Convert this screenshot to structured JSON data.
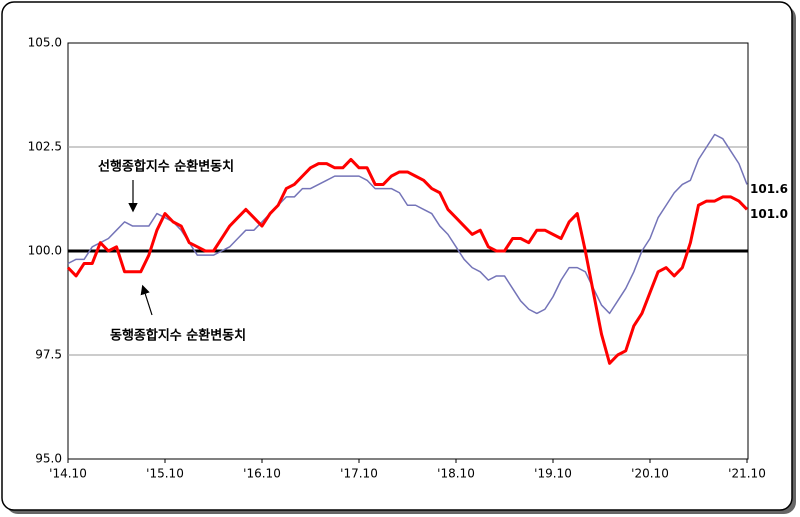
{
  "chart_data": {
    "type": "line",
    "categories": [
      "'14.10",
      null,
      null,
      null,
      null,
      null,
      null,
      null,
      null,
      null,
      null,
      null,
      "'15.10",
      null,
      null,
      null,
      null,
      null,
      null,
      null,
      null,
      null,
      null,
      null,
      "'16.10",
      null,
      null,
      null,
      null,
      null,
      null,
      null,
      null,
      null,
      null,
      null,
      "'17.10",
      null,
      null,
      null,
      null,
      null,
      null,
      null,
      null,
      null,
      null,
      null,
      "'18.10",
      null,
      null,
      null,
      null,
      null,
      null,
      null,
      null,
      null,
      null,
      null,
      "'19.10",
      null,
      null,
      null,
      null,
      null,
      null,
      null,
      null,
      null,
      null,
      null,
      "'20.10",
      null,
      null,
      null,
      null,
      null,
      null,
      null,
      null,
      null,
      null,
      null,
      "'21.10"
    ],
    "series": [
      {
        "name": "선행종합지수 순환변동치",
        "color": "#7474b8",
        "width": 1.5,
        "values": [
          99.7,
          99.8,
          99.8,
          100.1,
          100.2,
          100.3,
          100.5,
          100.7,
          100.6,
          100.6,
          100.6,
          100.9,
          100.8,
          100.7,
          100.5,
          100.2,
          99.9,
          99.9,
          99.9,
          100.0,
          100.1,
          100.3,
          100.5,
          100.5,
          100.7,
          100.9,
          101.1,
          101.3,
          101.3,
          101.5,
          101.5,
          101.6,
          101.7,
          101.8,
          101.8,
          101.8,
          101.8,
          101.7,
          101.5,
          101.5,
          101.5,
          101.4,
          101.1,
          101.1,
          101.0,
          100.9,
          100.6,
          100.4,
          100.1,
          99.8,
          99.6,
          99.5,
          99.3,
          99.4,
          99.4,
          99.1,
          98.8,
          98.6,
          98.5,
          98.6,
          98.9,
          99.3,
          99.6,
          99.6,
          99.5,
          99.1,
          98.7,
          98.5,
          98.8,
          99.1,
          99.5,
          100.0,
          100.3,
          100.8,
          101.1,
          101.4,
          101.6,
          101.7,
          102.2,
          102.5,
          102.8,
          102.7,
          102.4,
          102.1,
          101.6
        ],
        "value_labels": [
          null,
          null,
          null,
          null,
          null,
          null,
          null,
          null,
          null,
          null,
          null,
          null,
          null,
          null,
          null,
          null,
          null,
          null,
          null,
          null,
          null,
          null,
          null,
          null,
          null,
          null,
          null,
          null,
          null,
          null,
          null,
          null,
          null,
          null,
          null,
          null,
          null,
          null,
          null,
          null,
          null,
          null,
          null,
          null,
          null,
          null,
          null,
          null,
          null,
          null,
          null,
          null,
          null,
          null,
          null,
          null,
          null,
          null,
          null,
          null,
          null,
          null,
          null,
          null,
          null,
          null,
          null,
          null,
          null,
          null,
          null,
          null,
          null,
          null,
          null,
          null,
          null,
          null,
          null,
          null,
          null,
          null,
          null,
          null,
          "101.6"
        ]
      },
      {
        "name": "동행종합지수 순환변동치",
        "color": "#ff0000",
        "width": 3,
        "values": [
          99.6,
          99.4,
          99.7,
          99.7,
          100.2,
          100.0,
          100.1,
          99.5,
          99.5,
          99.5,
          99.9,
          100.5,
          100.9,
          100.7,
          100.6,
          100.2,
          100.1,
          100.0,
          100.0,
          100.3,
          100.6,
          100.8,
          101.0,
          100.8,
          100.6,
          100.9,
          101.1,
          101.5,
          101.6,
          101.8,
          102.0,
          102.1,
          102.1,
          102.0,
          102.0,
          102.2,
          102.0,
          102.0,
          101.6,
          101.6,
          101.8,
          101.9,
          101.9,
          101.8,
          101.7,
          101.5,
          101.4,
          101.0,
          100.8,
          100.6,
          100.4,
          100.5,
          100.1,
          100.0,
          100.0,
          100.3,
          100.3,
          100.2,
          100.5,
          100.5,
          100.4,
          100.3,
          100.7,
          100.9,
          100.0,
          99.0,
          98.0,
          97.3,
          97.5,
          97.6,
          98.2,
          98.5,
          99.0,
          99.5,
          99.6,
          99.4,
          99.6,
          100.2,
          101.1,
          101.2,
          101.2,
          101.3,
          101.3,
          101.2,
          101.0
        ],
        "value_labels": [
          null,
          null,
          null,
          null,
          null,
          null,
          null,
          null,
          null,
          null,
          null,
          null,
          null,
          null,
          null,
          null,
          null,
          null,
          null,
          null,
          null,
          null,
          null,
          null,
          null,
          null,
          null,
          null,
          null,
          null,
          null,
          null,
          null,
          null,
          null,
          null,
          null,
          null,
          null,
          null,
          null,
          null,
          null,
          null,
          null,
          null,
          null,
          null,
          null,
          null,
          null,
          null,
          null,
          null,
          null,
          null,
          null,
          null,
          null,
          null,
          null,
          null,
          null,
          null,
          null,
          null,
          null,
          null,
          null,
          null,
          null,
          null,
          null,
          null,
          null,
          null,
          null,
          null,
          null,
          null,
          null,
          null,
          null,
          null,
          "101.0"
        ]
      }
    ],
    "ylim": [
      95,
      105
    ],
    "yticks": [
      {
        "value": 95,
        "label": "95.0"
      },
      {
        "value": 97.5,
        "label": "97.5"
      },
      {
        "value": 100,
        "label": "100.0"
      },
      {
        "value": 102.5,
        "label": "102.5"
      },
      {
        "value": 105,
        "label": "105.0"
      }
    ],
    "baseline": 100,
    "grid": true
  }
}
